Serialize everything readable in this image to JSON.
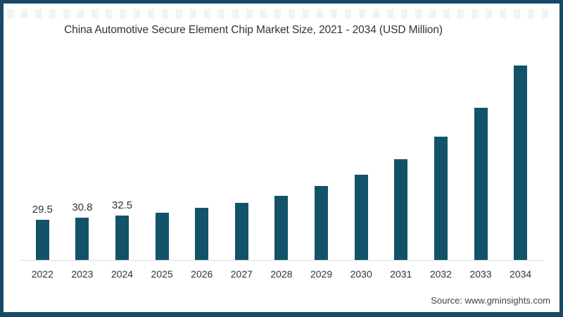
{
  "window": {
    "border_color": "#18496b",
    "background": "#ffffff"
  },
  "chart_data": {
    "type": "bar",
    "title": "China Automotive Secure Element Chip Market Size, 2021 - 2034 (USD Million)",
    "categories": [
      "2022",
      "2023",
      "2024",
      "2025",
      "2026",
      "2027",
      "2028",
      "2029",
      "2030",
      "2031",
      "2032",
      "2033",
      "2034"
    ],
    "values": [
      29.5,
      30.8,
      32.5,
      34.6,
      38.0,
      41.8,
      46.9,
      54.0,
      62.3,
      73.9,
      90.3,
      111.4,
      142.3
    ],
    "data_labels": [
      "29.5",
      "30.8",
      "32.5",
      "",
      "",
      "",
      "",
      "",
      "",
      "",
      "",
      "",
      ""
    ],
    "xlabel": "",
    "ylabel": "",
    "unit": "USD Million",
    "ylim": [
      0,
      150
    ],
    "grid": false,
    "legend_position": "none",
    "bar_color": "#13536a",
    "axis_line_color": "#d9d9d9",
    "label_color": "#333333"
  },
  "source": {
    "text": "Source: www.gminsights.com"
  }
}
